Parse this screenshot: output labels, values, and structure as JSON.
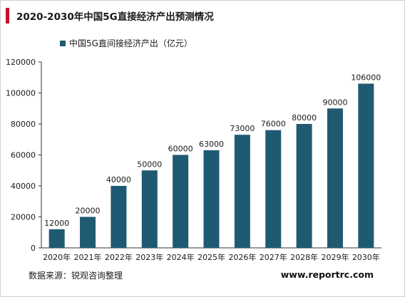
{
  "title": "2020-2030年中国5G直接经济产出预测情况",
  "legend_label": "中国5G直间接经济产出（亿元）",
  "source": "数据来源：锐观咨询整理",
  "website": "www.reportrc.com",
  "colors": {
    "bar": "#1f5a73",
    "accent": "#c8102e",
    "axis": "#333333",
    "text": "#1a1a1a"
  },
  "chart_data": {
    "type": "bar",
    "categories": [
      "2020年",
      "2021年",
      "2022年",
      "2023年",
      "2024年",
      "2025年",
      "2026年",
      "2027年",
      "2028年",
      "2029年",
      "2030年"
    ],
    "values": [
      12000,
      20000,
      40000,
      50000,
      60000,
      63000,
      73000,
      76000,
      80000,
      90000,
      106000
    ],
    "data_labels": [
      "12000",
      "20000",
      "40000",
      "50000",
      "60000",
      "63000",
      "73000",
      "76000",
      "80000",
      "90000",
      "106000"
    ],
    "series_name": "中国5G直间接经济产出（亿元）",
    "ylim": [
      0,
      120000
    ],
    "yticks": [
      0,
      20000,
      40000,
      60000,
      80000,
      100000,
      120000
    ],
    "ytick_labels": [
      "0",
      "20000",
      "40000",
      "60000",
      "80000",
      "100000",
      "120000"
    ],
    "grid": false,
    "legend_position": "top-left"
  }
}
